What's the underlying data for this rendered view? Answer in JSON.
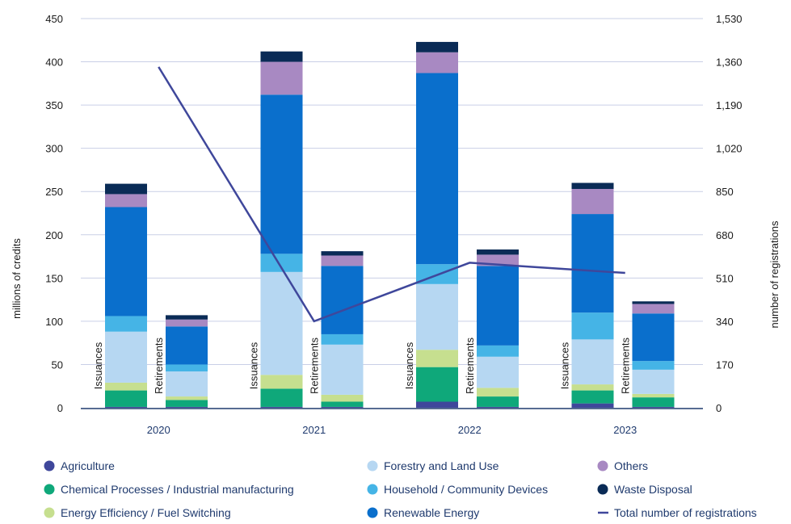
{
  "chart_data": {
    "type": "bar",
    "stacked": true,
    "categories": [
      "2020",
      "2021",
      "2022",
      "2023"
    ],
    "bar_labels": [
      "Issuances",
      "Retirements"
    ],
    "ylabel": "millions of credits",
    "y2label": "number of registrations",
    "ylim": [
      0,
      450
    ],
    "y2lim": [
      0,
      1530
    ],
    "yticks": [
      "0",
      "50",
      "100",
      "150",
      "200",
      "250",
      "300",
      "350",
      "400",
      "450"
    ],
    "y2ticks": [
      "0",
      "170",
      "340",
      "510",
      "680",
      "850",
      "1,020",
      "1,190",
      "1,360",
      "1,530"
    ],
    "grid": true,
    "legend_position": "bottom",
    "series": [
      {
        "name": "Agriculture",
        "color": "#3f479b",
        "issuances": [
          1,
          1,
          7,
          5
        ],
        "retirements": [
          1,
          1,
          1,
          1
        ]
      },
      {
        "name": "Chemical Processes / Industrial manufacturing",
        "color": "#0fa87a",
        "issuances": [
          19,
          21,
          40,
          15
        ],
        "retirements": [
          8,
          6,
          12,
          11
        ]
      },
      {
        "name": "Energy Efficiency / Fuel Switching",
        "color": "#c6df8f",
        "issuances": [
          9,
          16,
          20,
          7
        ],
        "retirements": [
          4,
          8,
          10,
          4
        ]
      },
      {
        "name": "Forestry and Land Use",
        "color": "#b6d7f2",
        "issuances": [
          59,
          119,
          76,
          52
        ],
        "retirements": [
          29,
          58,
          36,
          28
        ]
      },
      {
        "name": "Household / Community Devices",
        "color": "#45b4e6",
        "issuances": [
          18,
          21,
          23,
          31
        ],
        "retirements": [
          8,
          12,
          13,
          10
        ]
      },
      {
        "name": "Renewable Energy",
        "color": "#0a6fcc",
        "issuances": [
          126,
          184,
          221,
          114
        ],
        "retirements": [
          44,
          79,
          92,
          55
        ]
      },
      {
        "name": "Others",
        "color": "#a889c2",
        "issuances": [
          15,
          38,
          24,
          29
        ],
        "retirements": [
          8,
          12,
          13,
          11
        ]
      },
      {
        "name": "Waste Disposal",
        "color": "#0a2b56",
        "issuances": [
          12,
          12,
          12,
          7
        ],
        "retirements": [
          5,
          5,
          6,
          3
        ]
      }
    ],
    "line": {
      "name": "Total number of registrations",
      "color": "#3f479b",
      "axis": "right",
      "values": [
        1340,
        340,
        570,
        530
      ]
    }
  }
}
